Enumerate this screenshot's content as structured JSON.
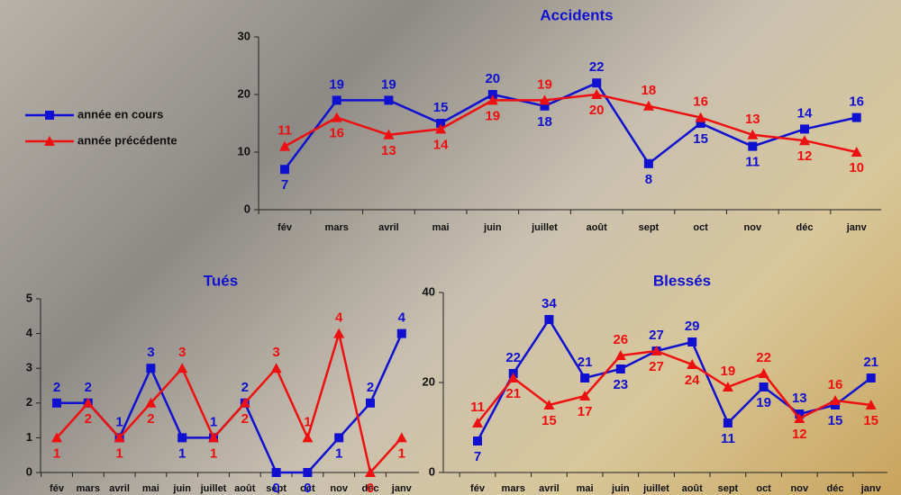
{
  "chart_data": [
    {
      "type": "line",
      "title": "Accidents",
      "categories": [
        "fév",
        "mars",
        "avril",
        "mai",
        "juin",
        "juillet",
        "août",
        "sept",
        "oct",
        "nov",
        "déc",
        "janv"
      ],
      "series": [
        {
          "name": "année en cours",
          "color": "#1010d0",
          "marker": "square",
          "values": [
            7,
            19,
            19,
            15,
            20,
            18,
            22,
            8,
            15,
            11,
            14,
            16
          ]
        },
        {
          "name": "année précédente",
          "color": "#ee1010",
          "marker": "triangle",
          "values": [
            11,
            16,
            13,
            14,
            19,
            19,
            20,
            18,
            16,
            13,
            12,
            10
          ]
        }
      ],
      "ylim": [
        0,
        30
      ],
      "yticks": [
        0,
        10,
        20,
        30
      ],
      "legend": "left"
    },
    {
      "type": "line",
      "title": "Tués",
      "categories": [
        "fév",
        "mars",
        "avril",
        "mai",
        "juin",
        "juillet",
        "août",
        "sept",
        "oct",
        "nov",
        "déc",
        "janv"
      ],
      "series": [
        {
          "color": "#1010d0",
          "marker": "square",
          "values": [
            2,
            2,
            1,
            3,
            1,
            1,
            2,
            0,
            0,
            1,
            2,
            4
          ]
        },
        {
          "color": "#ee1010",
          "marker": "triangle",
          "values": [
            1,
            2,
            1,
            2,
            3,
            1,
            2,
            3,
            1,
            4,
            0,
            1
          ]
        }
      ],
      "ylim": [
        0,
        5
      ],
      "yticks": [
        0,
        1,
        2,
        3,
        4,
        5
      ]
    },
    {
      "type": "line",
      "title": "Blessés",
      "categories": [
        "fév",
        "mars",
        "avril",
        "mai",
        "juin",
        "juillet",
        "août",
        "sept",
        "oct",
        "nov",
        "déc",
        "janv"
      ],
      "series": [
        {
          "color": "#1010d0",
          "marker": "square",
          "values": [
            7,
            22,
            34,
            21,
            23,
            27,
            29,
            11,
            19,
            13,
            15,
            21
          ]
        },
        {
          "color": "#ee1010",
          "marker": "triangle",
          "values": [
            11,
            21,
            15,
            17,
            26,
            27,
            24,
            19,
            22,
            12,
            16,
            15
          ]
        }
      ],
      "ylim": [
        0,
        40
      ],
      "yticks": [
        0,
        20,
        40
      ]
    }
  ]
}
